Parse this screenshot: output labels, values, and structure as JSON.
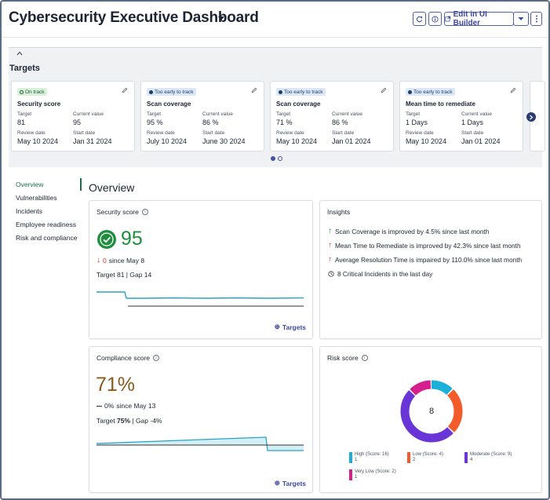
{
  "header": {
    "title": "Cybersecurity Executive Dashboard",
    "edit_label": "Edit in UI Builder"
  },
  "targets": {
    "title": "Targets",
    "cards": [
      {
        "status": "On track",
        "status_color": "#d9f0dc",
        "name": "Security score",
        "target_label": "Target",
        "target": "81",
        "current_label": "Current value",
        "current": "95",
        "review_label": "Review date",
        "review": "May 10 2024",
        "start_label": "Start date",
        "start": "Jan 31 2024"
      },
      {
        "status": "Too early to track",
        "status_color": "#dde8f7",
        "name": "Scan coverage",
        "target_label": "Target",
        "target": "95 %",
        "current_label": "Current value",
        "current": "86 %",
        "review_label": "Review date",
        "review": "July 10 2024",
        "start_label": "Start date",
        "start": "June 30 2024"
      },
      {
        "status": "Too early to track",
        "status_color": "#dde8f7",
        "name": "Scan coverage",
        "target_label": "Target",
        "target": "71 %",
        "current_label": "Current value",
        "current": "86 %",
        "review_label": "Review date",
        "review": "May 10 2024",
        "start_label": "Start date",
        "start": "Jan 01 2024"
      },
      {
        "status": "Too early to track",
        "status_color": "#dde8f7",
        "name": "Mean time to remediate",
        "target_label": "Target",
        "target": "1 Days",
        "current_label": "Current value",
        "current": "1 Days",
        "review_label": "Review date",
        "review": "May 10 2024",
        "start_label": "Start date",
        "start": "Jan 01 2024"
      }
    ]
  },
  "nav": {
    "items": [
      "Overview",
      "Vulnerabilities",
      "Incidents",
      "Employee readiness",
      "Risk and compliance"
    ]
  },
  "overview": {
    "title": "Overview"
  },
  "security_score": {
    "title": "Security score",
    "value": "95",
    "delta": "0",
    "since": "since May 8",
    "target_gap": "Target 81 | Gap 14",
    "link": "Targets",
    "color": "#1e8e3e"
  },
  "insights": {
    "title": "Insights",
    "items": [
      {
        "text": "Scan Coverage is improved by 4.5% since last month",
        "icon": "arrow-up-icon",
        "color": "#1e8e3e"
      },
      {
        "text": "Mean Time to Remediate is improved by 42.3% since last month",
        "icon": "arrow-up-icon",
        "color": "#d93025"
      },
      {
        "text": "Average Resolution Time is impaired by 110.0% since last month",
        "icon": "arrow-up-icon",
        "color": "#d93025"
      },
      {
        "text": "8 Critical Incidents in the last day",
        "icon": "clock-icon",
        "color": "#333333"
      }
    ]
  },
  "compliance_score": {
    "title": "Compliance score",
    "value": "71%",
    "delta": "0%",
    "since": "since May 13",
    "target_gap_prefix": "Target ",
    "target_gap_bold": "75%",
    "target_gap_suffix": " | Gap -4%",
    "link": "Targets",
    "color": "#8a5a1c"
  },
  "risk_score": {
    "title": "Risk score",
    "center": "8",
    "chart_data": {
      "type": "pie",
      "slices": [
        {
          "label": "High (Score: 16)",
          "count": "1",
          "value": 1,
          "color": "#1ab0d8"
        },
        {
          "label": "Low (Score: 4)",
          "count": "2",
          "value": 2,
          "color": "#f25c2a"
        },
        {
          "label": "Moderate (Score: 9)",
          "count": "4",
          "value": 4,
          "color": "#6a35d6"
        },
        {
          "label": "Very Low (Score: 2)",
          "count": "1",
          "value": 1,
          "color": "#d61f8f"
        }
      ]
    }
  }
}
